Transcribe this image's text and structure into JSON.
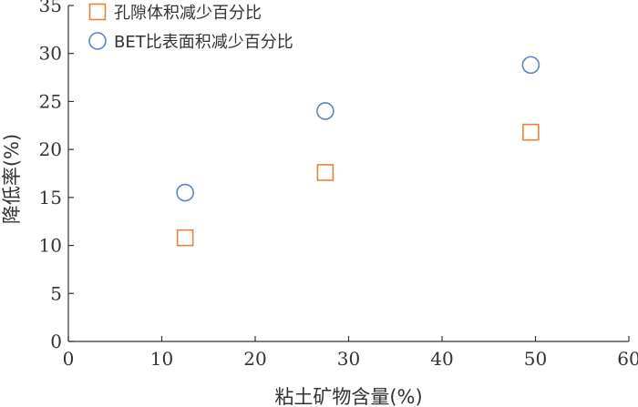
{
  "chart_data": {
    "type": "scatter",
    "xlabel": "粘土矿物含量(%)",
    "ylabel": "降低率(%)",
    "xlim": [
      0,
      60
    ],
    "ylim": [
      0,
      35
    ],
    "xticks": [
      0,
      10,
      20,
      30,
      40,
      50,
      60
    ],
    "yticks": [
      0,
      5,
      10,
      15,
      20,
      25,
      30,
      35
    ],
    "grid": false,
    "legend_position": "top-left",
    "series": [
      {
        "name": "孔隙体积减少百分比",
        "marker": "square",
        "color": "#E8823A",
        "x": [
          12.5,
          27.5,
          49.5
        ],
        "y": [
          10.8,
          17.6,
          21.8
        ]
      },
      {
        "name": "BET比表面积减少百分比",
        "marker": "circle",
        "color": "#5B86C5",
        "x": [
          12.5,
          27.5,
          49.5
        ],
        "y": [
          15.5,
          24.0,
          28.8
        ]
      }
    ]
  }
}
